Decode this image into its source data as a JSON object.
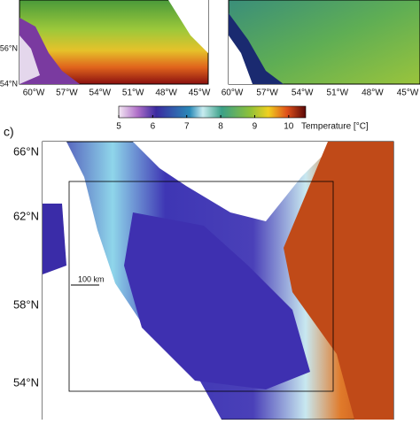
{
  "panels": {
    "top_left": {
      "yticks": [
        "56°N",
        "54°N"
      ],
      "xticks": [
        "60°W",
        "57°W",
        "54°W",
        "51°W",
        "48°W",
        "45°W"
      ]
    },
    "top_right": {
      "xticks": [
        "60°W",
        "57°W",
        "54°W",
        "51°W",
        "48°W",
        "45°W"
      ]
    }
  },
  "colorbar": {
    "lim": [
      5,
      10.5
    ],
    "ticks": [
      5,
      6,
      7,
      8,
      9,
      10
    ],
    "label": "Temperature [°C]"
  },
  "panel_c": {
    "label": "c)",
    "yticks": [
      "66°N",
      "62°N",
      "58°N",
      "54°N"
    ],
    "scale_label": "100 km"
  }
}
